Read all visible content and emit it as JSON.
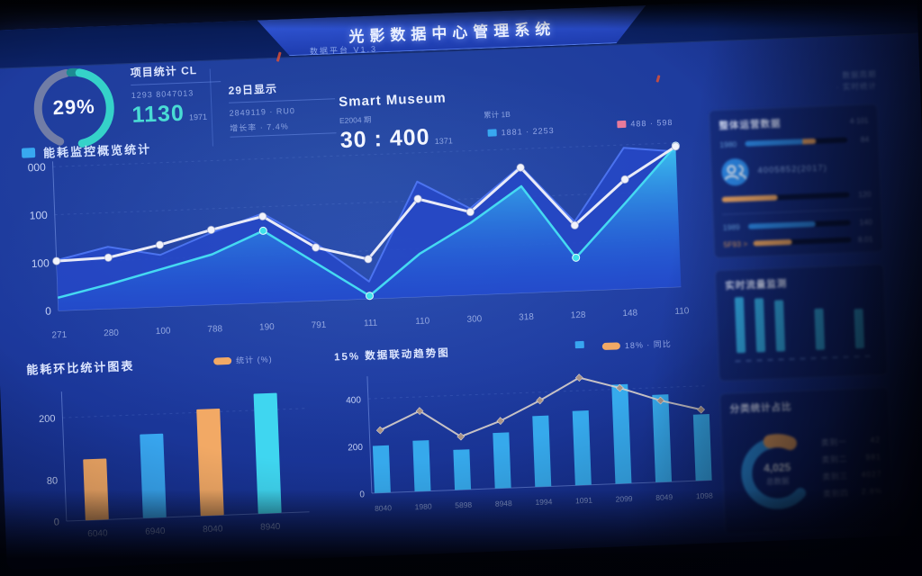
{
  "header": {
    "title": "光影数据中心管理系统",
    "version_label": "数据平台 V1.3",
    "meta_top_1": "数据周期",
    "meta_top_2": "· 实时统计"
  },
  "gauge_block": {
    "value_label": "29%",
    "legend_label": "能耗监控概览统计"
  },
  "kpis": {
    "k1": {
      "label": "项目统计 CL",
      "sub": "1293 8047013",
      "value": "1130",
      "suffix": "1971"
    },
    "k2": {
      "label": "29日显示",
      "line1": "2849119 · RU0",
      "line2": "增长率 · 7.4%"
    },
    "k3": {
      "title": "Smart Museum",
      "left_small": "E2004 期",
      "right_small": "累计 1B",
      "value": "30 : 400",
      "suffix": "1371"
    }
  },
  "right_panel": {
    "card1": {
      "title": "整体运营数据",
      "badge": "4·101",
      "row1": {
        "label": "1980",
        "value": "84",
        "blue_w": 56,
        "orange_w": 13
      },
      "icon_text": "4005852(2017)",
      "row_orange": {
        "value": "120",
        "orange_w": 44
      },
      "row2": {
        "label": "1989",
        "value": "140",
        "blue_w": 66
      },
      "row3": {
        "label": "5F93 >",
        "value": "8.01",
        "orange_w": 40
      }
    },
    "card2": {
      "title": "实时流量监测"
    },
    "card3": {
      "title": "分类统计占比"
    }
  },
  "chart_data": [
    {
      "id": "gauge",
      "type": "donut-gauge",
      "value": 29,
      "label": "29%",
      "arc_color": "#35d2c9",
      "rest_color": "#8d93a8",
      "tab_color": "#1d8a92"
    },
    {
      "id": "main",
      "type": "area-line",
      "categories": [
        "271",
        "280",
        "100",
        "788",
        "190",
        "791",
        "111",
        "110",
        "300",
        "318",
        "128",
        "148",
        "110"
      ],
      "yticks": [
        "000",
        "100",
        "100",
        "0"
      ],
      "ylim": [
        0,
        1000
      ],
      "legend": [
        {
          "label": "1881 · 2253",
          "color": "#38a8f0"
        },
        {
          "label": "488 · 598",
          "color": "#e87a9a"
        }
      ],
      "series": [
        {
          "name": "blue-area",
          "type": "area",
          "color": "#2a4fd0",
          "values": [
            350,
            430,
            360,
            500,
            620,
            400,
            120,
            800,
            600,
            880,
            480,
            980,
            940
          ]
        },
        {
          "name": "cyan-area",
          "type": "area",
          "color": "#3fd8f0",
          "values": [
            90,
            170,
            260,
            350,
            500,
            260,
            20,
            300,
            500,
            740,
            230,
            600,
            980
          ],
          "dot_idx": [
            4,
            6,
            10,
            12
          ]
        },
        {
          "name": "white-line",
          "type": "line",
          "color": "#e9ebf8",
          "values": [
            345,
            355,
            430,
            520,
            600,
            370,
            275,
            680,
            575,
            870,
            455,
            760,
            975
          ]
        }
      ]
    },
    {
      "id": "energy",
      "type": "bar",
      "title": "能耗环比统计图表",
      "legend": [
        {
          "label": "统计 (%)",
          "color": "#f2a965"
        }
      ],
      "yticks": [
        "200",
        "80",
        "0"
      ],
      "ylim": [
        0,
        240
      ],
      "categories": [
        "6040",
        "6940",
        "8040",
        "8940"
      ],
      "values": [
        118,
        162,
        206,
        232
      ],
      "bar_colors": [
        "#f2a965",
        "#38a6f0",
        "#f2a965",
        "#3fd6f0"
      ]
    },
    {
      "id": "trend",
      "type": "bar-line",
      "title": "15% 数据联动趋势图",
      "legend": [
        {
          "label": "",
          "color": "#38a6f0"
        },
        {
          "label": "18% · 同比",
          "color": "#f2a965"
        }
      ],
      "yticks": [
        "400",
        "200",
        "0"
      ],
      "ylim": [
        0,
        480
      ],
      "categories": [
        "8040",
        "1980",
        "5898",
        "8948",
        "1994",
        "1091",
        "2099",
        "8049",
        "1098"
      ],
      "bars": [
        200,
        215,
        170,
        235,
        300,
        315,
        420,
        370,
        280
      ],
      "line": [
        265,
        340,
        225,
        285,
        365,
        455,
        405,
        345,
        300
      ],
      "bar_color": "#38b0f0",
      "line_color": "#d9d0ca",
      "marker_color": "#a89387"
    },
    {
      "id": "mini",
      "type": "bar",
      "values": [
        62,
        60,
        57,
        0,
        46,
        0,
        44
      ],
      "color": "#35b4f2"
    },
    {
      "id": "donut",
      "type": "donut",
      "center_value": "4,025",
      "center_label": "总数据",
      "segments": [
        {
          "label": "主要",
          "value": 60,
          "color": "#2f9bf2"
        },
        {
          "label": "次要",
          "value": 10,
          "color": "#f2a965"
        }
      ],
      "list": [
        {
          "label": "类别一",
          "value": "42"
        },
        {
          "label": "类别二",
          "value": "981"
        },
        {
          "label": "类别三",
          "value": "4027"
        },
        {
          "label": "类别四",
          "value": "2.8%"
        }
      ]
    }
  ]
}
